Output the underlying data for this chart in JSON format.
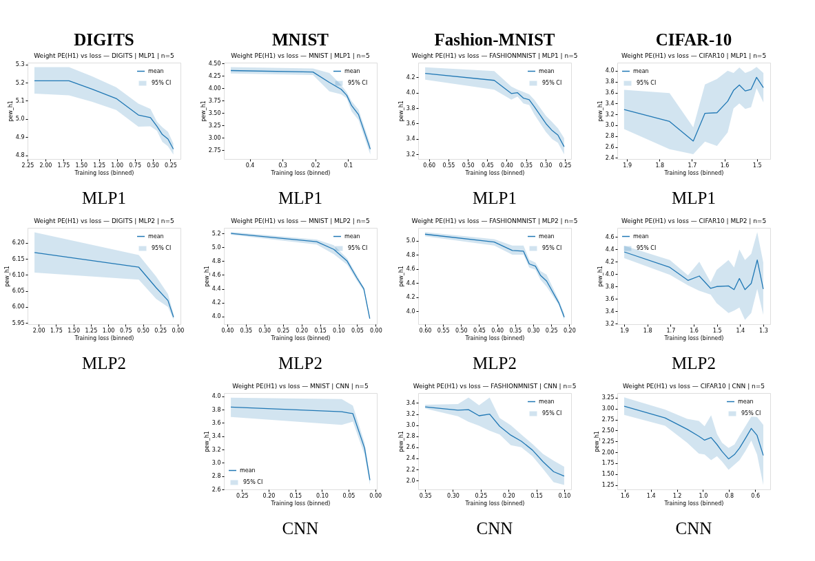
{
  "chart_data": [
    {
      "type": "line",
      "title": "Weight PE(H1) vs loss — DIGITS | MLP1 | n=5",
      "xlabel": "Training loss (binned)",
      "ylabel": "pew_h1",
      "legend": "top right",
      "annotations": [
        "95% CI",
        "DIGITS",
        "MLP1"
      ],
      "x": [
        2.154,
        1.67,
        1.35,
        1.01,
        0.7,
        0.53,
        0.44,
        0.365,
        0.285,
        0.21
      ],
      "xlim": [
        2.25,
        0.11
      ],
      "xticks": [
        2.25,
        {
          "value": 2,
          "label": "2.00"
        },
        1.75,
        {
          "value": 1.5,
          "label": "1.50"
        },
        1.25,
        {
          "value": 1,
          "label": "1.00"
        },
        0.75,
        {
          "value": 0.5,
          "label": "0.50"
        },
        0.25
      ],
      "ylim": [
        4.78,
        5.31
      ],
      "yticks": [
        4.8,
        4.9,
        {
          "value": 5,
          "label": "5.0"
        },
        5.1,
        5.2,
        5.3
      ],
      "series": [
        {
          "name": "mean",
          "color": "#1f77b4",
          "values": [
            5.21,
            5.21,
            5.165,
            5.113,
            5.022,
            5.008,
            4.96,
            4.915,
            4.89,
            4.835
          ],
          "lower": [
            5.14,
            5.13,
            5.095,
            5.05,
            4.958,
            4.96,
            4.935,
            4.875,
            4.85,
            4.805
          ],
          "upper": [
            5.285,
            5.285,
            5.235,
            5.175,
            5.085,
            5.055,
            4.985,
            4.955,
            4.93,
            4.865
          ]
        }
      ]
    },
    {
      "type": "line",
      "title": "Weight PE(H1) vs loss — MNIST | MLP1 | n=5",
      "xlabel": "Training loss (binned)",
      "ylabel": "pew_h1",
      "legend": "top right",
      "annotations": [
        "95% CI",
        "MNIST",
        "MLP1"
      ],
      "x": [
        0.458,
        0.207,
        0.157,
        0.121,
        0.104,
        0.089,
        0.068,
        0.032
      ],
      "xlim": [
        0.479,
        0.012
      ],
      "xticks": [
        0.4,
        0.3,
        0.2,
        0.1
      ],
      "ylim": [
        2.57,
        4.52
      ],
      "yticks": [
        2.75,
        {
          "value": 3,
          "label": "3.00"
        },
        3.25,
        {
          "value": 3.5,
          "label": "3.50"
        },
        3.75,
        {
          "value": 4,
          "label": "4.00"
        },
        4.25,
        {
          "value": 4.5,
          "label": "4.50"
        }
      ],
      "series": [
        {
          "name": "mean",
          "color": "#1f77b4",
          "values": [
            4.36,
            4.33,
            4.12,
            3.98,
            3.86,
            3.65,
            3.47,
            2.77
          ],
          "lower": [
            4.3,
            4.27,
            3.94,
            3.88,
            3.8,
            3.53,
            3.36,
            2.66
          ],
          "upper": [
            4.43,
            4.4,
            4.31,
            4.07,
            3.92,
            3.74,
            3.57,
            2.87
          ]
        }
      ]
    },
    {
      "type": "line",
      "title": "Weight PE(H1) vs loss — FASHIONMNIST | MLP1 | n=5",
      "xlabel": "Training loss (binned)",
      "ylabel": "pew_h1",
      "legend": "top right",
      "annotations": [
        "95% CI",
        "Fashion-MNIST",
        "MLP1"
      ],
      "x": [
        0.61,
        0.432,
        0.388,
        0.372,
        0.357,
        0.342,
        0.329,
        0.299,
        0.283,
        0.268,
        0.252
      ],
      "xlim": [
        0.628,
        0.234
      ],
      "xticks": [
        {
          "value": 0.6,
          "label": "0.60"
        },
        0.55,
        {
          "value": 0.5,
          "label": "0.50"
        },
        0.45,
        {
          "value": 0.4,
          "label": "0.40"
        },
        0.35,
        {
          "value": 0.3,
          "label": "0.30"
        },
        0.25
      ],
      "ylim": [
        3.14,
        4.39
      ],
      "yticks": [
        3.2,
        3.4,
        3.6,
        3.8,
        {
          "value": 4,
          "label": "4.0"
        },
        4.2
      ],
      "series": [
        {
          "name": "mean",
          "color": "#1f77b4",
          "values": [
            4.25,
            4.16,
            3.99,
            4.0,
            3.93,
            3.91,
            3.82,
            3.6,
            3.51,
            3.45,
            3.3
          ],
          "lower": [
            4.17,
            4.04,
            3.91,
            3.95,
            3.86,
            3.84,
            3.72,
            3.49,
            3.4,
            3.35,
            3.2
          ],
          "upper": [
            4.33,
            4.28,
            4.08,
            4.04,
            4.01,
            3.98,
            3.91,
            3.7,
            3.62,
            3.54,
            3.41
          ]
        }
      ]
    },
    {
      "type": "line",
      "title": "Weight PE(H1) vs loss — CIFAR10 | MLP1 | n=5",
      "xlabel": "Training loss (binned)",
      "ylabel": "pew_h1",
      "legend": "top left",
      "annotations": [
        "95% CI",
        "CIFAR-10",
        "MLP1"
      ],
      "x": [
        1.909,
        1.769,
        1.696,
        1.66,
        1.623,
        1.59,
        1.572,
        1.554,
        1.536,
        1.518,
        1.501,
        1.48
      ],
      "xlim": [
        1.93,
        1.459
      ],
      "xticks": [
        1.9,
        1.8,
        1.7,
        1.6,
        1.5
      ],
      "ylim": [
        2.38,
        4.15
      ],
      "yticks": [
        2.4,
        2.6,
        2.8,
        {
          "value": 3,
          "label": "3.0"
        },
        3.2,
        3.4,
        3.6,
        3.8,
        {
          "value": 4,
          "label": "4.0"
        }
      ],
      "series": [
        {
          "name": "mean",
          "color": "#1f77b4",
          "values": [
            3.29,
            3.07,
            2.71,
            3.22,
            3.23,
            3.44,
            3.64,
            3.74,
            3.63,
            3.66,
            3.88,
            3.69
          ],
          "lower": [
            2.93,
            2.56,
            2.47,
            2.7,
            2.62,
            2.87,
            3.31,
            3.4,
            3.3,
            3.33,
            3.68,
            3.42
          ],
          "upper": [
            3.65,
            3.59,
            2.96,
            3.75,
            3.85,
            4.0,
            3.96,
            4.06,
            3.96,
            4.0,
            4.07,
            3.96
          ]
        }
      ]
    },
    {
      "type": "line",
      "title": "Weight PE(H1) vs loss — DIGITS | MLP2 | n=5",
      "xlabel": "Training loss (binned)",
      "ylabel": "pew_h1",
      "legend": "top right",
      "annotations": [
        "95% CI",
        "MLP2"
      ],
      "x": [
        2.06,
        0.56,
        0.31,
        0.14,
        0.06
      ],
      "xlim": [
        2.16,
        -0.04
      ],
      "xticks": [
        {
          "value": 2,
          "label": "2.00"
        },
        1.75,
        {
          "value": 1.5,
          "label": "1.50"
        },
        1.25,
        {
          "value": 1,
          "label": "1.00"
        },
        0.75,
        {
          "value": 0.5,
          "label": "0.50"
        },
        0.25,
        {
          "value": 0,
          "label": "0.00"
        }
      ],
      "ylim": [
        5.946,
        6.247
      ],
      "yticks": [
        5.95,
        {
          "value": 6,
          "label": "6.00"
        },
        6.05,
        {
          "value": 6.1,
          "label": "6.10"
        },
        6.15,
        {
          "value": 6.2,
          "label": "6.20"
        }
      ],
      "series": [
        {
          "name": "mean",
          "color": "#1f77b4",
          "values": [
            6.17,
            6.124,
            6.06,
            6.02,
            5.968
          ],
          "lower": [
            6.107,
            6.085,
            6.025,
            6.0,
            5.96
          ],
          "upper": [
            6.233,
            6.162,
            6.095,
            6.04,
            5.978
          ]
        }
      ]
    },
    {
      "type": "line",
      "title": "Weight PE(H1) vs loss — MNIST | MLP2 | n=5",
      "xlabel": "Training loss (binned)",
      "ylabel": "pew_h1",
      "legend": "top right",
      "annotations": [
        "95% CI",
        "MLP2"
      ],
      "x": [
        0.39,
        0.159,
        0.113,
        0.077,
        0.051,
        0.032,
        0.016
      ],
      "xlim": [
        0.409,
        -0.003
      ],
      "xticks": [
        {
          "value": 0.4,
          "label": "0.40"
        },
        0.35,
        {
          "value": 0.3,
          "label": "0.30"
        },
        0.25,
        {
          "value": 0.2,
          "label": "0.20"
        },
        0.15,
        {
          "value": 0.1,
          "label": "0.10"
        },
        0.05,
        {
          "value": 0,
          "label": "0.00"
        }
      ],
      "ylim": [
        3.89,
        5.28
      ],
      "yticks": [
        {
          "value": 4,
          "label": "4.0"
        },
        4.2,
        4.4,
        4.6,
        4.8,
        {
          "value": 5,
          "label": "5.0"
        },
        5.2
      ],
      "series": [
        {
          "name": "mean",
          "color": "#1f77b4",
          "values": [
            5.2,
            5.08,
            4.97,
            4.8,
            4.56,
            4.4,
            3.97
          ],
          "lower": [
            5.18,
            5.04,
            4.9,
            4.75,
            4.52,
            4.37,
            3.95
          ],
          "upper": [
            5.22,
            5.11,
            5.03,
            4.84,
            4.6,
            4.42,
            3.99
          ]
        }
      ]
    },
    {
      "type": "line",
      "title": "Weight PE(H1) vs loss — FASHIONMNIST | MLP2 | n=5",
      "xlabel": "Training loss (binned)",
      "ylabel": "pew_h1",
      "legend": "top right",
      "annotations": [
        "95% CI",
        "MLP2"
      ],
      "x": [
        0.6,
        0.408,
        0.358,
        0.327,
        0.311,
        0.294,
        0.28,
        0.263,
        0.229,
        0.214
      ],
      "xlim": [
        0.619,
        0.195
      ],
      "xticks": [
        {
          "value": 0.6,
          "label": "0.60"
        },
        0.55,
        {
          "value": 0.5,
          "label": "0.50"
        },
        0.45,
        {
          "value": 0.4,
          "label": "0.40"
        },
        0.35,
        {
          "value": 0.3,
          "label": "0.30"
        },
        0.25,
        {
          "value": 0.2,
          "label": "0.20"
        }
      ],
      "ylim": [
        3.82,
        5.18
      ],
      "yticks": [
        {
          "value": 4,
          "label": "4.0"
        },
        4.2,
        4.4,
        4.6,
        4.8,
        {
          "value": 5,
          "label": "5.0"
        }
      ],
      "series": [
        {
          "name": "mean",
          "color": "#1f77b4",
          "values": [
            5.09,
            4.98,
            4.86,
            4.85,
            4.67,
            4.64,
            4.51,
            4.43,
            4.12,
            3.92
          ],
          "lower": [
            5.06,
            4.93,
            4.8,
            4.8,
            4.62,
            4.59,
            4.45,
            4.35,
            4.09,
            3.88
          ],
          "upper": [
            5.12,
            5.02,
            4.93,
            4.93,
            4.73,
            4.69,
            4.57,
            4.52,
            4.16,
            3.97
          ]
        }
      ]
    },
    {
      "type": "line",
      "title": "Weight PE(H1) vs loss — CIFAR10 | MLP2 | n=5",
      "xlabel": "Training loss (binned)",
      "ylabel": "pew_h1",
      "legend": "top left",
      "annotations": [
        "95% CI",
        "MLP2"
      ],
      "x": [
        1.9,
        1.703,
        1.625,
        1.576,
        1.527,
        1.501,
        1.45,
        1.426,
        1.403,
        1.379,
        1.352,
        1.326,
        1.3
      ],
      "xlim": [
        1.93,
        1.27
      ],
      "xticks": [
        1.9,
        1.8,
        1.7,
        1.6,
        1.5,
        1.4,
        1.3
      ],
      "ylim": [
        3.19,
        4.75
      ],
      "yticks": [
        3.2,
        3.4,
        3.6,
        3.8,
        {
          "value": 4,
          "label": "4.0"
        },
        4.2,
        4.4,
        4.6
      ],
      "series": [
        {
          "name": "mean",
          "color": "#1f77b4",
          "values": [
            4.36,
            4.11,
            3.9,
            3.97,
            3.77,
            3.8,
            3.81,
            3.75,
            3.93,
            3.75,
            3.85,
            4.23,
            3.76
          ],
          "lower": [
            4.26,
            3.99,
            3.82,
            3.73,
            3.67,
            3.53,
            3.37,
            3.41,
            3.46,
            3.26,
            3.37,
            3.76,
            3.34
          ],
          "upper": [
            4.46,
            4.23,
            3.98,
            4.2,
            3.87,
            4.07,
            4.23,
            4.11,
            4.4,
            4.23,
            4.33,
            4.68,
            4.19
          ]
        }
      ]
    },
    {
      "type": "line",
      "title": "Weight PE(H1) vs loss — MNIST | CNN | n=5",
      "xlabel": "Training loss (binned)",
      "ylabel": "pew_h1",
      "legend": "bottom left",
      "annotations": [
        "95% CI",
        "CNN"
      ],
      "x": [
        0.271,
        0.063,
        0.042,
        0.02,
        0.01
      ],
      "xlim": [
        0.284,
        -0.003
      ],
      "xticks": [
        0.25,
        {
          "value": 0.2,
          "label": "0.20"
        },
        0.15,
        {
          "value": 0.1,
          "label": "0.10"
        },
        0.05,
        {
          "value": 0,
          "label": "0.00"
        }
      ],
      "ylim": [
        2.6,
        4.05
      ],
      "yticks": [
        2.6,
        2.8,
        {
          "value": 3,
          "label": "3.0"
        },
        3.2,
        3.4,
        3.6,
        3.8,
        {
          "value": 4,
          "label": "4.0"
        }
      ],
      "series": [
        {
          "name": "mean",
          "color": "#1f77b4",
          "values": [
            3.84,
            3.77,
            3.74,
            3.22,
            2.74
          ],
          "lower": [
            3.69,
            3.57,
            3.62,
            3.12,
            2.67
          ],
          "upper": [
            3.98,
            3.96,
            3.86,
            3.3,
            2.8
          ]
        }
      ]
    },
    {
      "type": "line",
      "title": "Weight PE(H1) vs loss — FASHIONMNIST | CNN | n=5",
      "xlabel": "Training loss (binned)",
      "ylabel": "pew_h1",
      "legend": "top right",
      "annotations": [
        "95% CI",
        "CNN"
      ],
      "x": [
        0.35,
        0.291,
        0.272,
        0.253,
        0.234,
        0.216,
        0.196,
        0.177,
        0.157,
        0.138,
        0.119,
        0.1
      ],
      "xlim": [
        0.3625,
        0.0875
      ],
      "xticks": [
        0.35,
        {
          "value": 0.3,
          "label": "0.30"
        },
        0.25,
        {
          "value": 0.2,
          "label": "0.20"
        },
        0.15,
        {
          "value": 0.1,
          "label": "0.10"
        }
      ],
      "ylim": [
        1.84,
        3.58
      ],
      "yticks": [
        {
          "value": 2,
          "label": "2.0"
        },
        2.2,
        2.4,
        2.6,
        2.8,
        {
          "value": 3,
          "label": "3.0"
        },
        3.2,
        3.4
      ],
      "series": [
        {
          "name": "mean",
          "color": "#1f77b4",
          "values": [
            3.33,
            3.27,
            3.28,
            3.17,
            3.2,
            2.98,
            2.82,
            2.71,
            2.55,
            2.34,
            2.16,
            2.08
          ],
          "lower": [
            3.3,
            3.16,
            3.06,
            2.99,
            2.9,
            2.83,
            2.64,
            2.6,
            2.44,
            2.21,
            1.97,
            1.92
          ],
          "upper": [
            3.37,
            3.38,
            3.5,
            3.36,
            3.5,
            3.13,
            3.0,
            2.83,
            2.66,
            2.48,
            2.36,
            2.25
          ]
        }
      ]
    },
    {
      "type": "line",
      "title": "Weight PE(H1) vs loss — CIFAR10 | CNN | n=5",
      "xlabel": "Training loss (binned)",
      "ylabel": "pew_h1",
      "legend": "top right",
      "annotations": [
        "95% CI",
        "CNN"
      ],
      "x": [
        1.604,
        1.291,
        1.121,
        1.032,
        0.988,
        0.938,
        0.893,
        0.854,
        0.804,
        0.759,
        0.72,
        0.675,
        0.63,
        0.586,
        0.538
      ],
      "xlim": [
        1.657,
        0.485
      ],
      "xticks": [
        1.6,
        1.4,
        1.2,
        {
          "value": 1,
          "label": "1.0"
        },
        0.8,
        0.6
      ],
      "ylim": [
        1.15,
        3.36
      ],
      "yticks": [
        1.25,
        {
          "value": 1.5,
          "label": "1.50"
        },
        1.75,
        {
          "value": 2,
          "label": "2.00"
        },
        2.25,
        {
          "value": 2.5,
          "label": "2.50"
        },
        2.75,
        {
          "value": 3,
          "label": "3.00"
        },
        3.25
      ],
      "series": [
        {
          "name": "mean",
          "color": "#1f77b4",
          "values": [
            3.06,
            2.79,
            2.53,
            2.37,
            2.28,
            2.34,
            2.18,
            2.02,
            1.85,
            1.95,
            2.1,
            2.32,
            2.55,
            2.39,
            1.93
          ],
          "lower": [
            2.86,
            2.61,
            2.22,
            1.97,
            1.95,
            1.82,
            1.91,
            1.79,
            1.6,
            1.72,
            1.82,
            2.03,
            2.27,
            1.95,
            1.25
          ],
          "upper": [
            3.26,
            2.98,
            2.77,
            2.72,
            2.6,
            2.85,
            2.42,
            2.22,
            2.1,
            2.18,
            2.38,
            2.6,
            2.82,
            2.81,
            2.63
          ]
        }
      ]
    }
  ]
}
